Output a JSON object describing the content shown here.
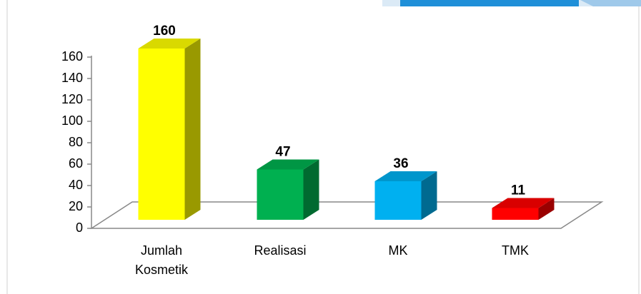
{
  "chart_data": {
    "type": "bar3d",
    "categories": [
      "Jumlah Kosmetik",
      "Realisasi",
      "MK",
      "TMK"
    ],
    "values": [
      160,
      47,
      36,
      11
    ],
    "colors": [
      "#ffff00",
      "#00b050",
      "#00b0f0",
      "#ff0000"
    ],
    "ylim": [
      0,
      160
    ],
    "yticks": [
      0,
      20,
      40,
      60,
      80,
      100,
      120,
      140,
      160
    ]
  }
}
